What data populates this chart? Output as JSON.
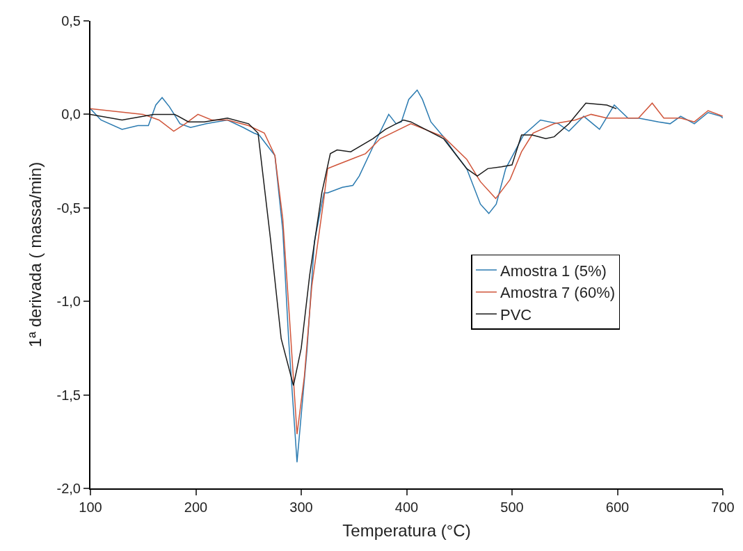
{
  "chart_data": {
    "type": "line",
    "xlabel": "Temperatura (°C)",
    "ylabel": "1ª derivada ( massa/min)",
    "xlim": [
      100,
      700
    ],
    "xticks": [
      100,
      200,
      300,
      400,
      500,
      600,
      700
    ],
    "ylim": [
      -2.0,
      0.5
    ],
    "yticks": [
      {
        "value": 0.5,
        "label": "0,5"
      },
      {
        "value": 0.0,
        "label": "0,0"
      },
      {
        "value": -0.5,
        "label": "-0,5"
      },
      {
        "value": -1.0,
        "label": "-1,0"
      },
      {
        "value": -1.5,
        "label": "-1,5"
      },
      {
        "value": -2.0,
        "label": "-2,0"
      }
    ],
    "legend": "right",
    "marker": "none",
    "line_style": "solid",
    "series": [
      {
        "name": "Amostra 1 (5%)",
        "color": "#2a7ab0",
        "x": [
          100,
          110,
          130,
          145,
          155,
          162,
          168,
          175,
          185,
          195,
          210,
          230,
          245,
          255,
          260,
          275,
          282.5,
          288,
          296,
          305.5,
          312.5,
          321.5,
          325,
          339,
          349,
          355,
          370,
          383,
          390,
          395,
          402,
          410,
          415,
          423,
          435,
          445,
          457,
          470,
          478,
          485,
          494,
          511,
          527,
          544,
          554,
          568,
          583,
          597,
          610,
          620,
          639,
          650,
          660,
          673,
          686,
          698,
          700
        ],
        "values": [
          0.03,
          -0.03,
          -0.08,
          -0.06,
          -0.06,
          0.05,
          0.09,
          0.04,
          -0.05,
          -0.07,
          -0.05,
          -0.03,
          -0.07,
          -0.1,
          -0.11,
          -0.22,
          -0.62,
          -1.2,
          -1.86,
          -1.26,
          -0.68,
          -0.42,
          -0.42,
          -0.39,
          -0.38,
          -0.33,
          -0.15,
          0.0,
          -0.05,
          -0.04,
          0.08,
          0.13,
          0.08,
          -0.04,
          -0.12,
          -0.2,
          -0.29,
          -0.48,
          -0.53,
          -0.48,
          -0.29,
          -0.11,
          -0.03,
          -0.05,
          -0.09,
          -0.01,
          -0.08,
          0.05,
          -0.02,
          -0.02,
          -0.04,
          -0.05,
          -0.01,
          -0.05,
          0.01,
          -0.01,
          -0.02
        ]
      },
      {
        "name": "Amostra 7 (60%)",
        "color": "#d0553a",
        "x": [
          100,
          150,
          165,
          179,
          190,
          202,
          215,
          230,
          250,
          265,
          275,
          282.5,
          289,
          296,
          303,
          310,
          321.5,
          325,
          333.7,
          361,
          375,
          404,
          435,
          457,
          470,
          484.5,
          498,
          509,
          520,
          540,
          560,
          575,
          590,
          610,
          620,
          633,
          644,
          660,
          673,
          686,
          700
        ],
        "values": [
          0.03,
          0.0,
          -0.03,
          -0.09,
          -0.05,
          0.0,
          -0.03,
          -0.03,
          -0.06,
          -0.1,
          -0.22,
          -0.56,
          -1.1,
          -1.71,
          -1.4,
          -0.92,
          -0.45,
          -0.29,
          -0.27,
          -0.21,
          -0.13,
          -0.05,
          -0.12,
          -0.24,
          -0.36,
          -0.45,
          -0.35,
          -0.2,
          -0.1,
          -0.05,
          -0.03,
          0.0,
          -0.02,
          -0.02,
          -0.02,
          0.06,
          -0.02,
          -0.02,
          -0.04,
          0.02,
          -0.01
        ]
      },
      {
        "name": "PVC",
        "color": "#1a1a1a",
        "x": [
          100,
          130,
          160,
          180,
          193,
          208,
          230,
          250,
          259,
          270.7,
          281,
          292.6,
          300,
          308,
          319.5,
          327.6,
          334,
          347,
          368,
          380,
          397,
          404,
          435,
          457,
          467,
          477,
          490,
          500,
          509,
          519,
          532,
          540,
          554,
          570,
          590,
          599
        ],
        "values": [
          0.0,
          -0.03,
          0.0,
          0.0,
          -0.04,
          -0.04,
          -0.02,
          -0.05,
          -0.1,
          -0.66,
          -1.2,
          -1.45,
          -1.25,
          -0.86,
          -0.42,
          -0.21,
          -0.19,
          -0.2,
          -0.13,
          -0.08,
          -0.03,
          -0.04,
          -0.13,
          -0.29,
          -0.33,
          -0.29,
          -0.28,
          -0.27,
          -0.11,
          -0.11,
          -0.13,
          -0.12,
          -0.05,
          0.06,
          0.05,
          0.03
        ]
      }
    ]
  }
}
